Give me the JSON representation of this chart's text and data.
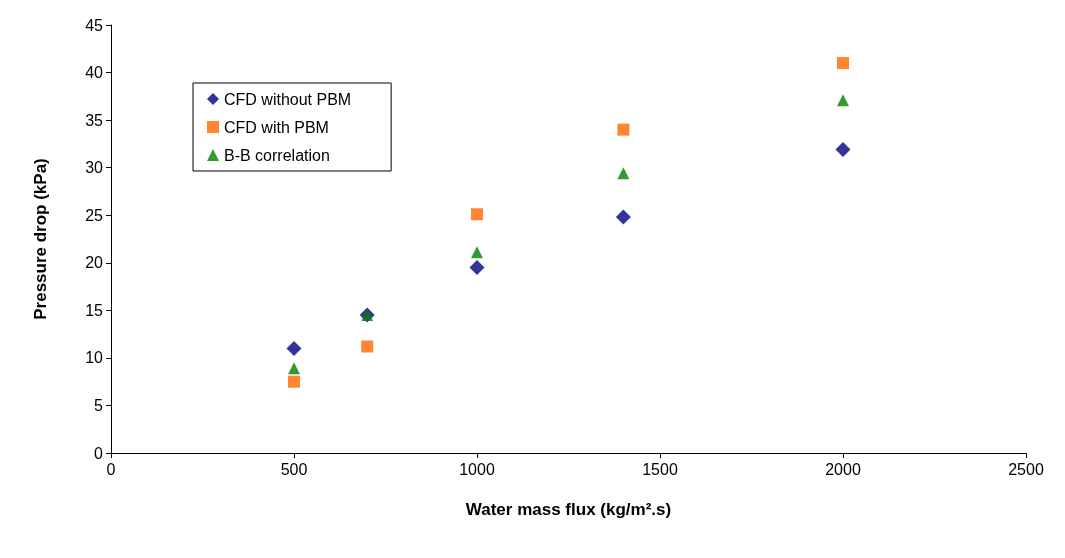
{
  "chart_data": {
    "type": "scatter",
    "xlabel": "Water mass flux (kg/m².s)",
    "ylabel": "Pressure drop (kPa)",
    "x": [
      500,
      700,
      1000,
      1400,
      2000
    ],
    "series": [
      {
        "name": "CFD without PBM",
        "color": "#000080",
        "marker": "diamond",
        "values": [
          11,
          14.5,
          19.5,
          24.8,
          31.9
        ]
      },
      {
        "name": "CFD with PBM",
        "color": "#ff6600",
        "marker": "square",
        "values": [
          7.5,
          11.2,
          25.1,
          34,
          41
        ]
      },
      {
        "name": "B-B correlation",
        "color": "#008000",
        "marker": "triangle",
        "values": [
          8.9,
          14.5,
          21.1,
          29.4,
          37.1
        ]
      }
    ],
    "xlim": [
      0,
      2500
    ],
    "xticks": [
      0,
      500,
      1000,
      1500,
      2000,
      2500
    ],
    "ylim": [
      0,
      45
    ],
    "yticks": [
      0,
      5,
      10,
      15,
      20,
      25,
      30,
      35,
      40,
      45
    ],
    "grid": false,
    "legend": "top left"
  }
}
